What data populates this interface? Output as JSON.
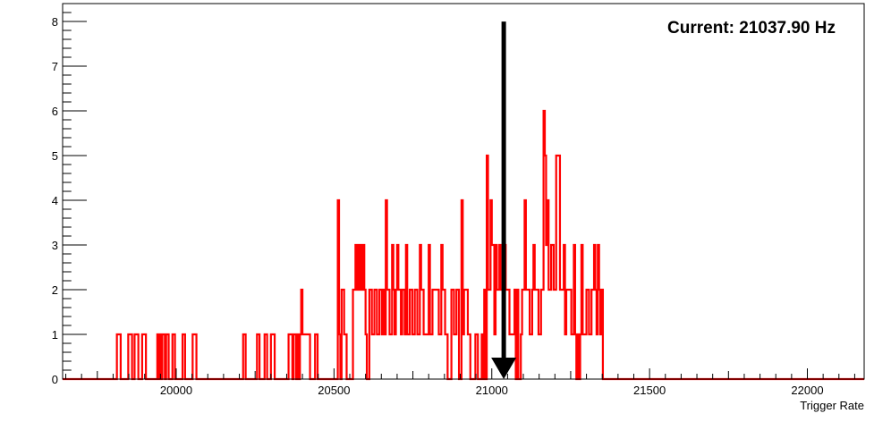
{
  "chart_data": {
    "type": "histogram-step",
    "title": "",
    "xlabel": "Trigger Rate",
    "ylabel": "",
    "xlim": [
      19640,
      22180
    ],
    "ylim": [
      0,
      8.4
    ],
    "x_ticks": [
      20000,
      20500,
      21000,
      21500,
      22000
    ],
    "y_ticks": [
      0,
      1,
      2,
      3,
      4,
      5,
      6,
      7,
      8
    ],
    "grid": false,
    "legend": "none",
    "annotation": "Current: 21037.90 Hz",
    "marker_x": 21037.9,
    "colors": {
      "series": "#ff0000",
      "marker": "#000000"
    },
    "series": [
      {
        "bin_width": 4,
        "points": [
          [
            19640,
            0
          ],
          [
            19812,
            1
          ],
          [
            19824,
            0
          ],
          [
            19848,
            1
          ],
          [
            19860,
            0
          ],
          [
            19868,
            1
          ],
          [
            19880,
            0
          ],
          [
            19892,
            1
          ],
          [
            19904,
            0
          ],
          [
            19940,
            1
          ],
          [
            19944,
            0
          ],
          [
            19948,
            1
          ],
          [
            19952,
            0
          ],
          [
            19956,
            1
          ],
          [
            19964,
            0
          ],
          [
            19968,
            1
          ],
          [
            19976,
            0
          ],
          [
            19988,
            1
          ],
          [
            19996,
            0
          ],
          [
            20020,
            1
          ],
          [
            20028,
            0
          ],
          [
            20052,
            1
          ],
          [
            20064,
            0
          ],
          [
            20212,
            1
          ],
          [
            20220,
            0
          ],
          [
            20256,
            1
          ],
          [
            20264,
            0
          ],
          [
            20280,
            1
          ],
          [
            20288,
            0
          ],
          [
            20300,
            1
          ],
          [
            20312,
            0
          ],
          [
            20356,
            1
          ],
          [
            20368,
            0
          ],
          [
            20372,
            1
          ],
          [
            20380,
            0
          ],
          [
            20384,
            1
          ],
          [
            20388,
            0
          ],
          [
            20392,
            1
          ],
          [
            20396,
            2
          ],
          [
            20400,
            1
          ],
          [
            20424,
            0
          ],
          [
            20440,
            1
          ],
          [
            20448,
            0
          ],
          [
            20512,
            4
          ],
          [
            20516,
            1
          ],
          [
            20520,
            0
          ],
          [
            20524,
            2
          ],
          [
            20532,
            1
          ],
          [
            20540,
            0
          ],
          [
            20560,
            2
          ],
          [
            20568,
            3
          ],
          [
            20572,
            2
          ],
          [
            20576,
            3
          ],
          [
            20580,
            2
          ],
          [
            20584,
            3
          ],
          [
            20588,
            2
          ],
          [
            20592,
            3
          ],
          [
            20596,
            2
          ],
          [
            20600,
            1
          ],
          [
            20604,
            0
          ],
          [
            20612,
            2
          ],
          [
            20620,
            1
          ],
          [
            20628,
            2
          ],
          [
            20636,
            1
          ],
          [
            20644,
            2
          ],
          [
            20652,
            1
          ],
          [
            20656,
            2
          ],
          [
            20660,
            1
          ],
          [
            20664,
            4
          ],
          [
            20668,
            2
          ],
          [
            20676,
            1
          ],
          [
            20684,
            3
          ],
          [
            20688,
            2
          ],
          [
            20692,
            1
          ],
          [
            20696,
            2
          ],
          [
            20700,
            3
          ],
          [
            20704,
            2
          ],
          [
            20712,
            1
          ],
          [
            20716,
            2
          ],
          [
            20724,
            1
          ],
          [
            20728,
            3
          ],
          [
            20732,
            1
          ],
          [
            20740,
            2
          ],
          [
            20748,
            1
          ],
          [
            20756,
            2
          ],
          [
            20764,
            1
          ],
          [
            20772,
            3
          ],
          [
            20776,
            2
          ],
          [
            20784,
            1
          ],
          [
            20800,
            3
          ],
          [
            20804,
            1
          ],
          [
            20812,
            2
          ],
          [
            20832,
            1
          ],
          [
            20840,
            3
          ],
          [
            20844,
            2
          ],
          [
            20852,
            1
          ],
          [
            20860,
            0
          ],
          [
            20872,
            2
          ],
          [
            20880,
            1
          ],
          [
            20888,
            2
          ],
          [
            20896,
            0
          ],
          [
            20904,
            4
          ],
          [
            20908,
            1
          ],
          [
            20912,
            2
          ],
          [
            20924,
            1
          ],
          [
            20932,
            0
          ],
          [
            20948,
            1
          ],
          [
            20956,
            0
          ],
          [
            20968,
            1
          ],
          [
            20972,
            0
          ],
          [
            20976,
            2
          ],
          [
            20980,
            0
          ],
          [
            20984,
            5
          ],
          [
            20988,
            2
          ],
          [
            20996,
            4
          ],
          [
            21000,
            3
          ],
          [
            21008,
            1
          ],
          [
            21012,
            3
          ],
          [
            21016,
            2
          ],
          [
            21024,
            3
          ],
          [
            21028,
            2
          ],
          [
            21036,
            3
          ],
          [
            21044,
            2
          ],
          [
            21056,
            1
          ],
          [
            21072,
            2
          ],
          [
            21076,
            0
          ],
          [
            21080,
            2
          ],
          [
            21084,
            0
          ],
          [
            21092,
            1
          ],
          [
            21096,
            2
          ],
          [
            21104,
            4
          ],
          [
            21108,
            2
          ],
          [
            21120,
            1
          ],
          [
            21128,
            2
          ],
          [
            21132,
            3
          ],
          [
            21136,
            2
          ],
          [
            21148,
            1
          ],
          [
            21156,
            2
          ],
          [
            21164,
            6
          ],
          [
            21168,
            5
          ],
          [
            21172,
            3
          ],
          [
            21176,
            4
          ],
          [
            21180,
            2
          ],
          [
            21188,
            3
          ],
          [
            21196,
            2
          ],
          [
            21204,
            5
          ],
          [
            21216,
            2
          ],
          [
            21228,
            3
          ],
          [
            21232,
            1
          ],
          [
            21236,
            2
          ],
          [
            21252,
            1
          ],
          [
            21260,
            3
          ],
          [
            21264,
            1
          ],
          [
            21268,
            0
          ],
          [
            21272,
            1
          ],
          [
            21276,
            0
          ],
          [
            21280,
            1
          ],
          [
            21284,
            3
          ],
          [
            21288,
            1
          ],
          [
            21300,
            2
          ],
          [
            21308,
            1
          ],
          [
            21316,
            2
          ],
          [
            21324,
            3
          ],
          [
            21328,
            2
          ],
          [
            21332,
            1
          ],
          [
            21336,
            3
          ],
          [
            21340,
            2
          ],
          [
            21344,
            1
          ],
          [
            21348,
            2
          ],
          [
            21352,
            0
          ],
          [
            22180,
            0
          ]
        ]
      }
    ]
  }
}
